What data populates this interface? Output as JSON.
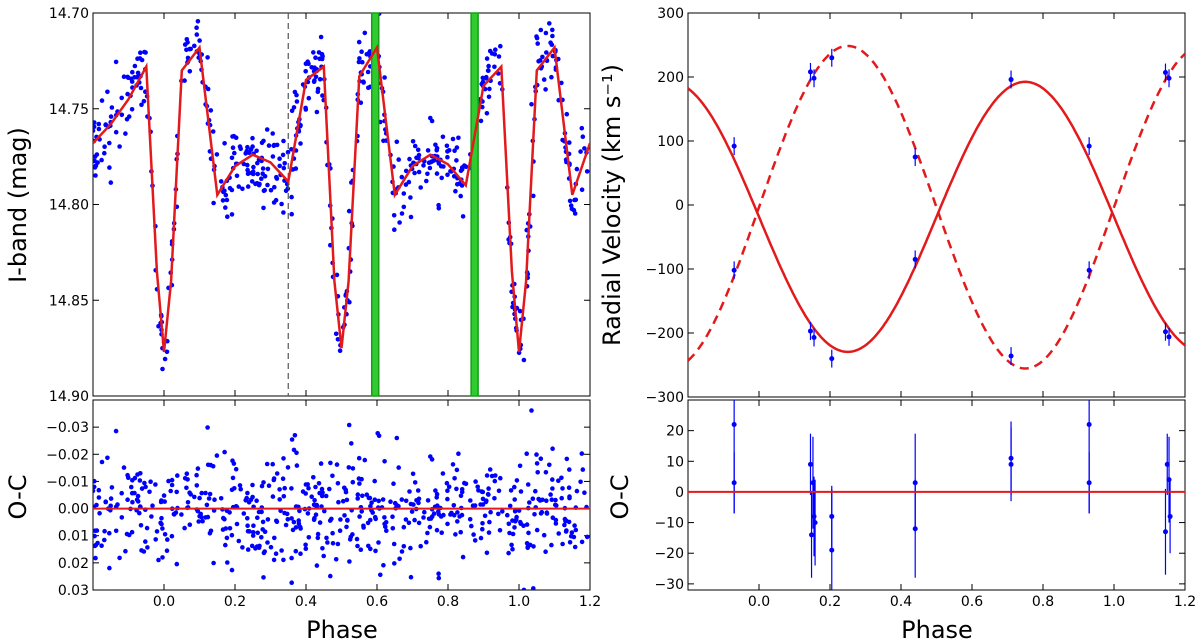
{
  "chart_data": [
    {
      "id": "lc",
      "type": "scatter",
      "title": "",
      "xlabel": "",
      "ylabel": "I-band (mag)",
      "xlim": [
        -0.2,
        1.2
      ],
      "ylim": [
        14.7,
        14.9
      ],
      "y_inverted": true,
      "xticks": [],
      "yticks": [
        "14.70",
        "14.75",
        "14.80",
        "14.85",
        "14.90"
      ],
      "model_curve": {
        "name": "model",
        "color": "#e31a1c",
        "x": [
          -0.2,
          -0.15,
          -0.1,
          -0.05,
          -0.02,
          0.0,
          0.02,
          0.05,
          0.1,
          0.15,
          0.2,
          0.25,
          0.3,
          0.35,
          0.4,
          0.45,
          0.48,
          0.5,
          0.52,
          0.55,
          0.6,
          0.65,
          0.7,
          0.75,
          0.8,
          0.85,
          0.9,
          0.95,
          0.98,
          1.0,
          1.02,
          1.05,
          1.1,
          1.15,
          1.2
        ],
        "y": [
          14.768,
          14.758,
          14.745,
          14.728,
          14.835,
          14.877,
          14.84,
          14.73,
          14.718,
          14.795,
          14.78,
          14.774,
          14.778,
          14.788,
          14.735,
          14.728,
          14.84,
          14.875,
          14.84,
          14.733,
          14.718,
          14.795,
          14.78,
          14.774,
          14.779,
          14.79,
          14.738,
          14.728,
          14.835,
          14.877,
          14.84,
          14.73,
          14.718,
          14.795,
          14.768
        ]
      },
      "vlines": [
        {
          "x": 0.35,
          "style": "dashed",
          "color": "#555555"
        },
        {
          "x": 0.595,
          "style": "band",
          "color": "#1a9e1a"
        },
        {
          "x": 0.875,
          "style": "band",
          "color": "#1a9e1a"
        }
      ],
      "scatter": {
        "color": "#0000ff",
        "approx_points": 620,
        "scatter_mag": 0.012
      }
    },
    {
      "id": "lc_res",
      "type": "scatter",
      "xlabel": "Phase",
      "ylabel": "O-C",
      "xlim": [
        -0.2,
        1.2
      ],
      "ylim": [
        -0.04,
        0.03
      ],
      "y_inverted": true,
      "xticks": [
        "0.0",
        "0.2",
        "0.4",
        "0.6",
        "0.8",
        "1.0",
        "1.2"
      ],
      "yticks": [
        "−0.03",
        "−0.02",
        "−0.01",
        "0.00",
        "0.01",
        "0.02",
        "0.03"
      ],
      "zero_line": {
        "y": 0.0,
        "color": "#e31a1c"
      },
      "scatter": {
        "color": "#0000ff",
        "approx_points": 620,
        "scatter_mag": 0.012
      }
    },
    {
      "id": "rv",
      "type": "line",
      "xlabel": "",
      "ylabel": "Radial Velocity (km s⁻¹)",
      "xlim": [
        -0.2,
        1.2
      ],
      "ylim": [
        -300,
        300
      ],
      "xticks": [],
      "yticks": [
        "300",
        "200",
        "100",
        "0",
        "−100",
        "−200",
        "−300"
      ],
      "series": [
        {
          "name": "primary",
          "style": "solid",
          "color": "#e31a1c",
          "gamma": -18.5,
          "K": 211,
          "phase_zero": 0.75
        },
        {
          "name": "secondary",
          "style": "dashed",
          "color": "#e31a1c",
          "gamma": -3.5,
          "K": 252,
          "phase_zero": 0.25
        }
      ],
      "points": {
        "color": "#0000ff",
        "x": [
          -0.07,
          -0.07,
          0.145,
          0.155,
          0.145,
          0.155,
          0.205,
          0.205,
          0.44,
          0.44,
          0.71,
          0.71,
          0.93,
          0.93,
          1.145,
          1.155,
          1.145,
          1.155
        ],
        "y": [
          92,
          -102,
          208,
          198,
          -197,
          -207,
          230,
          -240,
          75,
          -85,
          196,
          -236,
          92,
          -102,
          207,
          198,
          -198,
          -206
        ],
        "err": [
          14,
          14,
          14,
          14,
          14,
          14,
          14,
          14,
          14,
          14,
          14,
          14,
          14,
          14,
          14,
          14,
          14,
          14
        ]
      }
    },
    {
      "id": "rv_res",
      "type": "scatter",
      "xlabel": "Phase",
      "ylabel": "O-C",
      "xlim": [
        -0.2,
        1.2
      ],
      "ylim": [
        -32,
        30
      ],
      "xticks": [
        "0.0",
        "0.2",
        "0.4",
        "0.6",
        "0.8",
        "1.0",
        "1.2"
      ],
      "yticks": [
        "20",
        "10",
        "0",
        "−10",
        "−20",
        "−30"
      ],
      "zero_line": {
        "y": 0,
        "color": "#e31a1c"
      },
      "points": {
        "color": "#0000ff",
        "x": [
          -0.07,
          -0.07,
          0.145,
          0.148,
          0.152,
          0.155,
          0.158,
          0.205,
          0.205,
          0.44,
          0.44,
          0.71,
          0.71,
          0.93,
          0.93,
          1.145,
          1.15,
          1.155,
          1.158
        ],
        "y": [
          22,
          3,
          9,
          -14,
          3,
          -8,
          -10,
          -19,
          -8,
          3,
          -12,
          11,
          9,
          22,
          3,
          -13,
          9,
          4,
          -8
        ],
        "err": [
          29,
          10,
          10,
          14,
          15,
          13,
          14,
          20,
          10,
          16,
          16,
          12,
          12,
          29,
          10,
          14,
          10,
          14,
          12
        ]
      }
    }
  ]
}
